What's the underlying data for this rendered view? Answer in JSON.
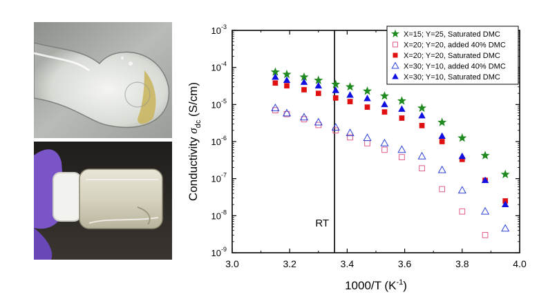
{
  "chart_data": {
    "type": "scatter",
    "xlabel": "1000/T (K⁻¹)",
    "ylabel": "Conductivity σ_dc (S/cm)",
    "ylabel_main": "Conductivity ",
    "ylabel_symbol": "σ",
    "ylabel_sub": "dc",
    "ylabel_unit": " (S/cm)",
    "xlim": [
      3.0,
      4.0
    ],
    "ylim_log10": [
      -9,
      -3
    ],
    "y_scale": "log",
    "x_ticks": [
      "3.0",
      "3.2",
      "3.4",
      "3.6",
      "3.8",
      "4.0"
    ],
    "y_ticks": [
      {
        "base": "10",
        "exp": "-3"
      },
      {
        "base": "10",
        "exp": "-4"
      },
      {
        "base": "10",
        "exp": "-5"
      },
      {
        "base": "10",
        "exp": "-6"
      },
      {
        "base": "10",
        "exp": "-7"
      },
      {
        "base": "10",
        "exp": "-8"
      },
      {
        "base": "10",
        "exp": "-9"
      }
    ],
    "legend_position": "top-right",
    "annotations": [
      {
        "text": "RT",
        "x": 3.356,
        "kind": "vertical-line"
      }
    ],
    "series": [
      {
        "name": "X=15; Y=25, Saturated DMC",
        "marker": "star-filled",
        "color": "#1f8a1f",
        "points": [
          [
            3.15,
            7.5e-05
          ],
          [
            3.19,
            6.5e-05
          ],
          [
            3.25,
            5.5e-05
          ],
          [
            3.3,
            4.5e-05
          ],
          [
            3.36,
            3.5e-05
          ],
          [
            3.41,
            3e-05
          ],
          [
            3.47,
            2.3e-05
          ],
          [
            3.53,
            1.7e-05
          ],
          [
            3.59,
            1.25e-05
          ],
          [
            3.66,
            8e-06
          ],
          [
            3.73,
            3.3e-06
          ],
          [
            3.8,
            1.25e-06
          ],
          [
            3.88,
            4.2e-07
          ],
          [
            3.95,
            1.3e-07
          ]
        ]
      },
      {
        "name": "X=20; Y=20, added 40% DMC",
        "marker": "square-open",
        "color": "#e05a8a",
        "points": [
          [
            3.15,
            7e-06
          ],
          [
            3.19,
            5.5e-06
          ],
          [
            3.25,
            4e-06
          ],
          [
            3.3,
            2.8e-06
          ],
          [
            3.36,
            2e-06
          ],
          [
            3.41,
            1.3e-06
          ],
          [
            3.47,
            9e-07
          ],
          [
            3.53,
            6e-07
          ],
          [
            3.59,
            3.8e-07
          ],
          [
            3.66,
            1.9e-07
          ],
          [
            3.73,
            5.2e-08
          ],
          [
            3.8,
            1.3e-08
          ],
          [
            3.88,
            3e-09
          ]
        ]
      },
      {
        "name": "X=20; Y=20, Saturated DMC",
        "marker": "square-filled",
        "color": "#e01010",
        "points": [
          [
            3.15,
            3.8e-05
          ],
          [
            3.19,
            3.2e-05
          ],
          [
            3.25,
            2.5e-05
          ],
          [
            3.3,
            2e-05
          ],
          [
            3.36,
            1.5e-05
          ],
          [
            3.41,
            1.2e-05
          ],
          [
            3.47,
            8.5e-06
          ],
          [
            3.53,
            6.3e-06
          ],
          [
            3.59,
            4.3e-06
          ],
          [
            3.66,
            2.7e-06
          ],
          [
            3.73,
            1e-06
          ],
          [
            3.8,
            3.3e-07
          ],
          [
            3.88,
            9e-08
          ],
          [
            3.95,
            2.5e-08
          ]
        ]
      },
      {
        "name": "X=30; Y=10, added 40% DMC",
        "marker": "triangle-open",
        "color": "#2a3fd6",
        "points": [
          [
            3.15,
            8e-06
          ],
          [
            3.19,
            5.8e-06
          ],
          [
            3.25,
            4.5e-06
          ],
          [
            3.3,
            3.3e-06
          ],
          [
            3.36,
            2.4e-06
          ],
          [
            3.41,
            1.7e-06
          ],
          [
            3.47,
            1.25e-06
          ],
          [
            3.53,
            9e-07
          ],
          [
            3.59,
            6e-07
          ],
          [
            3.66,
            4e-07
          ],
          [
            3.73,
            1.7e-07
          ],
          [
            3.8,
            4.8e-08
          ],
          [
            3.88,
            1.3e-08
          ],
          [
            3.95,
            4.5e-09
          ]
        ]
      },
      {
        "name": "X=30; Y=10, Saturated DMC",
        "marker": "triangle-filled",
        "color": "#1010e0",
        "points": [
          [
            3.15,
            5.5e-05
          ],
          [
            3.19,
            4.5e-05
          ],
          [
            3.25,
            4e-05
          ],
          [
            3.3,
            3.2e-05
          ],
          [
            3.36,
            2.4e-05
          ],
          [
            3.41,
            1.8e-05
          ],
          [
            3.47,
            1.45e-05
          ],
          [
            3.53,
            1e-05
          ],
          [
            3.59,
            7.5e-06
          ],
          [
            3.66,
            5e-06
          ],
          [
            3.73,
            1.4e-06
          ],
          [
            3.8,
            4e-07
          ],
          [
            3.88,
            9e-08
          ],
          [
            3.95,
            2e-08
          ]
        ]
      }
    ]
  },
  "photos": [
    {
      "name": "flask",
      "icon": "flask-photo"
    },
    {
      "name": "vial",
      "icon": "vial-photo"
    }
  ]
}
